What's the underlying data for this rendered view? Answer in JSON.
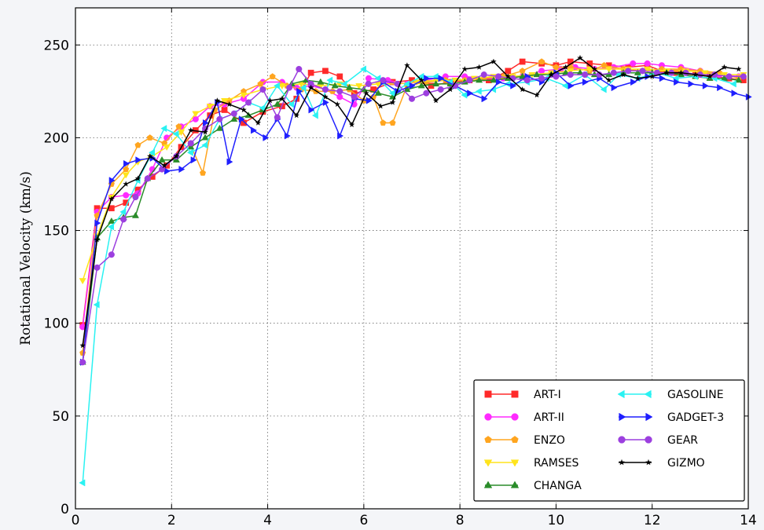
{
  "chart_data": {
    "type": "line",
    "title": "",
    "xlabel": "",
    "ylabel": "Rotational Velocity (km/s)",
    "xlim": [
      0,
      14
    ],
    "ylim": [
      0,
      270
    ],
    "x_ticks": [
      "0",
      "2",
      "4",
      "6",
      "8",
      "10",
      "12",
      "14"
    ],
    "y_ticks": [
      "0",
      "50",
      "100",
      "150",
      "200",
      "250"
    ],
    "x_tick_values": [
      0,
      2,
      4,
      6,
      8,
      10,
      12,
      14
    ],
    "y_tick_values": [
      0,
      50,
      100,
      150,
      200,
      250
    ],
    "grid": true,
    "legend_position": "lower-right",
    "legend_columns": 2,
    "series": [
      {
        "name": "ART-I",
        "color": "#ff2a2a",
        "marker": "square",
        "x": [
          0.15,
          0.45,
          0.75,
          1.05,
          1.3,
          1.6,
          1.9,
          2.2,
          2.5,
          2.8,
          3.1,
          3.5,
          3.9,
          4.3,
          4.6,
          4.9,
          5.2,
          5.5,
          5.8,
          6.2,
          6.6,
          7.0,
          7.4,
          7.8,
          8.2,
          8.6,
          9.0,
          9.3,
          9.7,
          10.0,
          10.3,
          10.7,
          11.1,
          11.5,
          11.9,
          12.2,
          12.5,
          12.9,
          13.2,
          13.6,
          13.9
        ],
        "y": [
          99,
          162,
          162,
          165,
          172,
          179,
          185,
          195,
          204,
          212,
          215,
          208,
          214,
          217,
          221,
          235,
          236,
          233,
          224,
          226,
          230,
          231,
          228,
          230,
          231,
          231,
          236,
          241,
          240,
          239,
          241,
          240,
          239,
          238,
          239,
          236,
          235,
          234,
          233,
          232,
          231
        ]
      },
      {
        "name": "ART-II",
        "color": "#ff2aff",
        "marker": "circle",
        "x": [
          0.15,
          0.45,
          0.75,
          1.05,
          1.3,
          1.6,
          1.9,
          2.2,
          2.5,
          2.8,
          3.1,
          3.5,
          3.9,
          4.3,
          4.6,
          4.9,
          5.2,
          5.5,
          5.8,
          6.1,
          6.5,
          6.9,
          7.3,
          7.7,
          8.1,
          8.5,
          8.9,
          9.3,
          9.7,
          10.1,
          10.4,
          10.8,
          11.2,
          11.6,
          11.9,
          12.2,
          12.6,
          13.0,
          13.4,
          13.8
        ],
        "y": [
          98,
          160,
          168,
          169,
          170,
          183,
          200,
          206,
          210,
          217,
          218,
          221,
          230,
          230,
          227,
          228,
          226,
          222,
          218,
          232,
          231,
          229,
          231,
          233,
          233,
          232,
          232,
          233,
          236,
          237,
          238,
          237,
          238,
          240,
          240,
          239,
          238,
          236,
          234,
          233
        ]
      },
      {
        "name": "ENZO",
        "color": "#ffa51f",
        "marker": "pentagon",
        "x": [
          0.15,
          0.45,
          0.75,
          1.05,
          1.3,
          1.55,
          1.85,
          2.15,
          2.4,
          2.65,
          2.9,
          3.2,
          3.5,
          3.85,
          4.1,
          4.4,
          4.7,
          5.0,
          5.35,
          5.7,
          6.0,
          6.2,
          6.4,
          6.6,
          6.9,
          7.3,
          7.7,
          8.1,
          8.5,
          8.9,
          9.3,
          9.7,
          10.0,
          10.3,
          10.7,
          11.0,
          11.4,
          11.8,
          12.2,
          12.6,
          13.0,
          13.4,
          13.8
        ],
        "y": [
          84,
          158,
          175,
          183,
          196,
          200,
          197,
          206,
          196,
          181,
          215,
          220,
          225,
          229,
          233,
          228,
          226,
          225,
          225,
          226,
          220,
          222,
          208,
          208,
          228,
          230,
          231,
          231,
          232,
          233,
          236,
          241,
          238,
          238,
          236,
          239,
          237,
          236,
          237,
          237,
          236,
          235,
          232
        ]
      },
      {
        "name": "RAMSES",
        "color": "#ffe41c",
        "marker": "triangle-down",
        "x": [
          0.15,
          0.45,
          0.75,
          1.05,
          1.3,
          1.6,
          1.9,
          2.2,
          2.5,
          2.8,
          3.1,
          3.5,
          3.9,
          4.3,
          4.7,
          5.1,
          5.5,
          5.9,
          6.3,
          6.7,
          7.1,
          7.5,
          7.9,
          8.3,
          8.7,
          9.1,
          9.5,
          9.9,
          10.3,
          10.7,
          11.1,
          11.5,
          11.9,
          12.3,
          12.7,
          13.1,
          13.5,
          13.9
        ],
        "y": [
          123,
          147,
          168,
          180,
          187,
          190,
          195,
          203,
          213,
          217,
          220,
          223,
          226,
          228,
          229,
          228,
          229,
          228,
          229,
          229,
          230,
          231,
          231,
          232,
          233,
          233,
          234,
          235,
          236,
          237,
          237,
          237,
          237,
          236,
          236,
          235,
          234,
          234
        ]
      },
      {
        "name": "CHANGA",
        "color": "#2a8c2a",
        "marker": "triangle-up",
        "x": [
          0.15,
          0.45,
          0.75,
          1.0,
          1.25,
          1.5,
          1.8,
          2.1,
          2.4,
          2.7,
          3.0,
          3.3,
          3.6,
          3.9,
          4.2,
          4.5,
          4.8,
          5.1,
          5.4,
          5.7,
          6.0,
          6.3,
          6.6,
          6.9,
          7.2,
          7.5,
          7.8,
          8.1,
          8.4,
          8.7,
          9.0,
          9.3,
          9.6,
          9.9,
          10.2,
          10.5,
          10.8,
          11.1,
          11.4,
          11.7,
          12.0,
          12.3,
          12.6,
          12.9,
          13.2,
          13.5,
          13.8
        ],
        "y": [
          79,
          146,
          155,
          157,
          158,
          178,
          188,
          188,
          195,
          200,
          205,
          210,
          212,
          215,
          218,
          229,
          231,
          230,
          228,
          227,
          226,
          224,
          222,
          226,
          228,
          229,
          229,
          230,
          231,
          231,
          232,
          233,
          234,
          234,
          235,
          235,
          234,
          234,
          235,
          235,
          235,
          235,
          234,
          233,
          232,
          232,
          231
        ]
      },
      {
        "name": "GASOLINE",
        "color": "#2af2f2",
        "marker": "triangle-left",
        "x": [
          0.15,
          0.45,
          0.75,
          1.0,
          1.3,
          1.6,
          1.85,
          2.1,
          2.4,
          2.7,
          3.0,
          3.3,
          3.6,
          3.9,
          4.2,
          4.5,
          4.75,
          5.0,
          5.3,
          5.6,
          6.0,
          6.3,
          6.6,
          6.9,
          7.2,
          7.5,
          7.8,
          8.1,
          8.4,
          8.7,
          9.0,
          9.4,
          9.8,
          10.2,
          10.6,
          11.0,
          11.3,
          11.7,
          12.1,
          12.5,
          12.9,
          13.3,
          13.7
        ],
        "y": [
          14,
          110,
          152,
          160,
          177,
          192,
          205,
          202,
          192,
          196,
          210,
          213,
          219,
          216,
          228,
          218,
          227,
          212,
          231,
          229,
          237,
          232,
          224,
          229,
          233,
          233,
          230,
          223,
          225,
          226,
          229,
          230,
          232,
          228,
          234,
          226,
          234,
          232,
          235,
          232,
          233,
          232,
          229
        ]
      },
      {
        "name": "GADGET-3",
        "color": "#1f1fff",
        "marker": "triangle-right",
        "x": [
          0.15,
          0.45,
          0.75,
          1.05,
          1.3,
          1.6,
          1.9,
          2.2,
          2.45,
          2.7,
          2.95,
          3.2,
          3.45,
          3.7,
          3.95,
          4.2,
          4.4,
          4.65,
          4.9,
          5.2,
          5.5,
          5.8,
          6.1,
          6.4,
          6.7,
          7.0,
          7.3,
          7.6,
          7.9,
          8.2,
          8.5,
          8.8,
          9.1,
          9.4,
          9.7,
          10.0,
          10.3,
          10.6,
          10.9,
          11.2,
          11.6,
          11.9,
          12.2,
          12.5,
          12.8,
          13.1,
          13.4,
          13.7,
          14.0
        ],
        "y": [
          79,
          154,
          177,
          186,
          188,
          189,
          182,
          183,
          188,
          208,
          219,
          187,
          210,
          204,
          200,
          210,
          201,
          225,
          215,
          219,
          201,
          221,
          220,
          230,
          225,
          228,
          232,
          232,
          228,
          224,
          221,
          230,
          228,
          233,
          230,
          235,
          228,
          230,
          232,
          227,
          230,
          233,
          232,
          230,
          229,
          228,
          227,
          224,
          222
        ]
      },
      {
        "name": "GEAR",
        "color": "#9c3fdf",
        "marker": "octagon",
        "x": [
          0.15,
          0.45,
          0.75,
          1.0,
          1.25,
          1.5,
          1.8,
          2.1,
          2.4,
          2.7,
          3.0,
          3.3,
          3.6,
          3.9,
          4.2,
          4.45,
          4.65,
          4.9,
          5.2,
          5.5,
          5.8,
          6.1,
          6.4,
          6.7,
          7.0,
          7.3,
          7.6,
          7.9,
          8.2,
          8.5,
          8.8,
          9.1,
          9.4,
          9.7,
          10.0,
          10.3,
          10.6,
          10.9,
          11.2,
          11.5,
          11.8,
          12.1,
          12.4,
          12.7,
          13.0,
          13.3,
          13.6,
          13.9
        ],
        "y": [
          79,
          130,
          137,
          156,
          168,
          178,
          183,
          190,
          197,
          205,
          210,
          213,
          219,
          226,
          211,
          227,
          237,
          229,
          226,
          225,
          222,
          229,
          231,
          229,
          221,
          224,
          226,
          228,
          231,
          234,
          233,
          232,
          231,
          232,
          233,
          234,
          234,
          234,
          235,
          236,
          236,
          235,
          235,
          235,
          234,
          234,
          233,
          233
        ]
      },
      {
        "name": "GIZMO",
        "color": "#000000",
        "marker": "star",
        "x": [
          0.15,
          0.45,
          0.75,
          1.05,
          1.3,
          1.55,
          1.85,
          2.1,
          2.4,
          2.7,
          2.95,
          3.2,
          3.5,
          3.8,
          4.05,
          4.3,
          4.6,
          4.9,
          5.2,
          5.45,
          5.75,
          6.05,
          6.35,
          6.6,
          6.9,
          7.2,
          7.5,
          7.8,
          8.1,
          8.4,
          8.7,
          9.0,
          9.3,
          9.6,
          9.9,
          10.2,
          10.5,
          10.8,
          11.1,
          11.4,
          11.7,
          12.0,
          12.3,
          12.6,
          12.9,
          13.2,
          13.5,
          13.8
        ],
        "y": [
          88,
          145,
          167,
          175,
          178,
          190,
          185,
          190,
          204,
          203,
          220,
          218,
          215,
          208,
          220,
          221,
          212,
          227,
          222,
          218,
          207,
          224,
          217,
          219,
          239,
          231,
          220,
          226,
          237,
          238,
          241,
          233,
          226,
          223,
          234,
          238,
          243,
          237,
          231,
          234,
          232,
          233,
          235,
          235,
          234,
          233,
          238,
          237
        ]
      }
    ]
  }
}
